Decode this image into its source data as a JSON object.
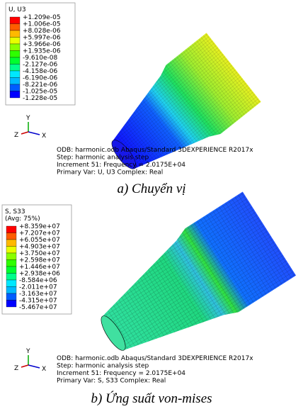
{
  "panels": [
    {
      "legend": {
        "title": [
          "U, U3"
        ],
        "values": [
          "+1.209e-05",
          "+1.006e-05",
          "+8.028e-06",
          "+5.997e-06",
          "+3.966e-06",
          "+1.935e-06",
          "-9.610e-08",
          "-2.127e-06",
          "-4.158e-06",
          "-6.190e-06",
          "-8.221e-06",
          "-1.025e-05",
          "-1.228e-05"
        ],
        "colors": [
          "#ff0000",
          "#ff5c00",
          "#ffb900",
          "#e8ff00",
          "#8bff00",
          "#2eff00",
          "#00ff2e",
          "#00ff8b",
          "#00e8ff",
          "#00b9ff",
          "#005cff",
          "#0000ff"
        ]
      },
      "axes": [
        "Y",
        "Z",
        "X"
      ],
      "info": [
        "ODB: harmonic.odb    Abaqus/Standard 3DEXPERIENCE R2017x",
        "Step: harmonic analysis step",
        "Increment     51: Frequency =    2.0175E+04",
        "Primary Var: U, U3   Complex: Real"
      ],
      "caption": "a) Chuyển vị"
    },
    {
      "legend": {
        "title": [
          "S, S33",
          "(Avg: 75%)"
        ],
        "values": [
          "+8.359e+07",
          "+7.207e+07",
          "+6.055e+07",
          "+4.903e+07",
          "+3.750e+07",
          "+2.598e+07",
          "+1.446e+07",
          "+2.938e+06",
          "-8.584e+06",
          "-2.011e+07",
          "-3.163e+07",
          "-4.315e+07",
          "-5.467e+07"
        ],
        "colors": [
          "#ff0000",
          "#ff5c00",
          "#ffb900",
          "#e8ff00",
          "#8bff00",
          "#2eff00",
          "#00ff2e",
          "#00ff8b",
          "#00e8ff",
          "#00b9ff",
          "#005cff",
          "#0000ff"
        ]
      },
      "axes": [
        "Y",
        "Z",
        "X"
      ],
      "info": [
        "ODB: harmonic.odb    Abaqus/Standard 3DEXPERIENCE R2017x",
        "Step: harmonic analysis step",
        "Increment     51: Frequency =    2.0175E+04",
        "Primary Var: S, S33   Complex: Real"
      ],
      "caption": "b) Ứng suất von-mises"
    }
  ]
}
